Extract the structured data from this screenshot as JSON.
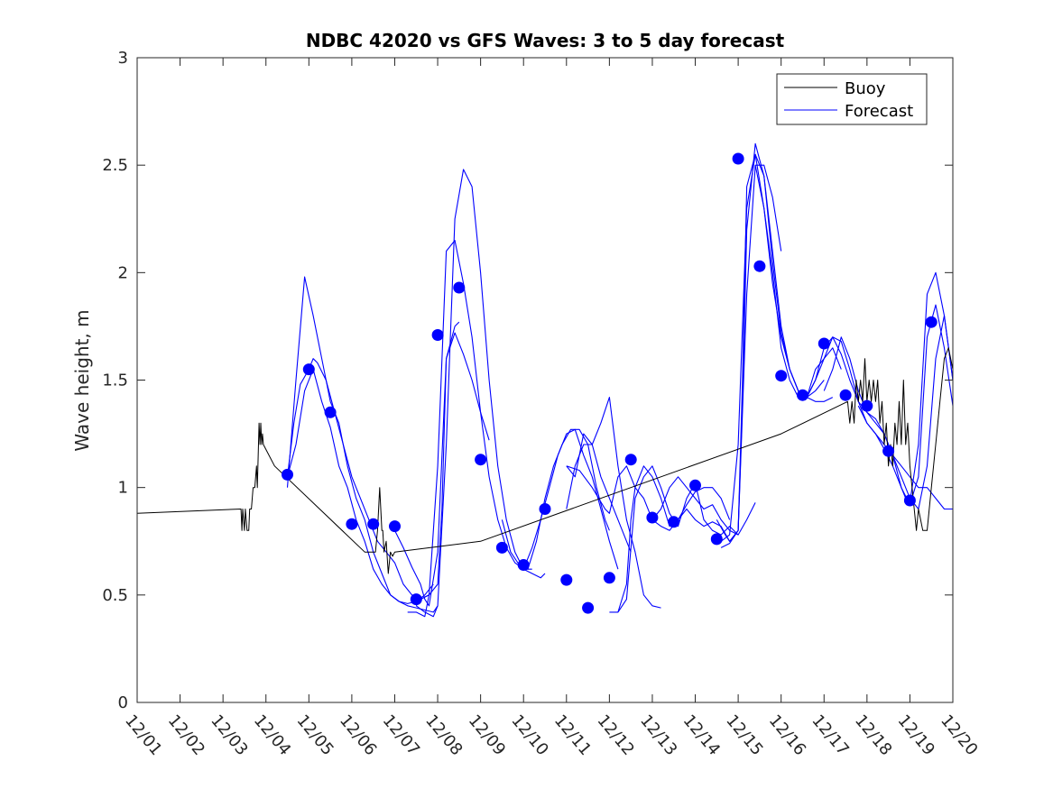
{
  "chart_data": {
    "type": "line",
    "title": "NDBC 42020 vs GFS Waves: 3 to 5 day forecast",
    "xlabel": "",
    "ylabel": "Wave height, m",
    "xlim": [
      0,
      19
    ],
    "ylim": [
      0,
      3
    ],
    "x_tick_values": [
      0,
      1,
      2,
      3,
      4,
      5,
      6,
      7,
      8,
      9,
      10,
      11,
      12,
      13,
      14,
      15,
      16,
      17,
      18,
      19
    ],
    "x_tick_labels": [
      "12/01",
      "12/02",
      "12/03",
      "12/04",
      "12/05",
      "12/06",
      "12/07",
      "12/08",
      "12/09",
      "12/10",
      "12/11",
      "12/12",
      "12/13",
      "12/14",
      "12/15",
      "12/16",
      "12/17",
      "12/18",
      "12/19",
      "12/20"
    ],
    "y_tick_values": [
      0,
      0.5,
      1,
      1.5,
      2,
      2.5,
      3
    ],
    "y_tick_labels": [
      "0",
      "0.5",
      "1",
      "1.5",
      "2",
      "2.5",
      "3"
    ],
    "grid": false,
    "legend": {
      "position": "top-right",
      "entries": [
        "Buoy",
        "Forecast"
      ]
    },
    "colors": {
      "buoy": "#000000",
      "forecast": "#0000ff",
      "axes": "#262626"
    },
    "buoy": {
      "name": "Buoy",
      "x": [
        0,
        2.42,
        2.44,
        2.46,
        2.5,
        2.52,
        2.56,
        2.6,
        2.62,
        2.66,
        2.7,
        2.74,
        2.78,
        2.8,
        2.84,
        2.86,
        2.88,
        2.9,
        2.92,
        2.94,
        3.2,
        5.3,
        5.55,
        5.6,
        5.65,
        5.7,
        5.72,
        5.75,
        5.8,
        5.85,
        5.9,
        5.95,
        6.0,
        8.0,
        15.0,
        16.55,
        16.6,
        16.65,
        16.7,
        16.75,
        16.8,
        16.85,
        16.9,
        16.95,
        17.0,
        17.05,
        17.1,
        17.15,
        17.2,
        17.25,
        17.3,
        17.35,
        17.4,
        17.45,
        17.5,
        17.55,
        17.6,
        17.65,
        17.7,
        17.75,
        17.8,
        17.85,
        17.9,
        17.95,
        18.0,
        18.05,
        18.1,
        18.15,
        18.2,
        18.3,
        18.4,
        18.5,
        18.6,
        18.7,
        18.8,
        18.9,
        19.0
      ],
      "y": [
        0.88,
        0.9,
        0.8,
        0.9,
        0.8,
        0.9,
        0.8,
        0.8,
        0.9,
        0.9,
        1.0,
        1.0,
        1.1,
        1.0,
        1.3,
        1.2,
        1.3,
        1.2,
        1.25,
        1.2,
        1.1,
        0.7,
        0.7,
        0.8,
        1.0,
        0.8,
        0.8,
        0.7,
        0.75,
        0.6,
        0.7,
        0.68,
        0.7,
        0.75,
        1.25,
        1.4,
        1.3,
        1.4,
        1.3,
        1.5,
        1.4,
        1.5,
        1.4,
        1.6,
        1.4,
        1.5,
        1.4,
        1.5,
        1.4,
        1.5,
        1.3,
        1.4,
        1.2,
        1.3,
        1.1,
        1.2,
        1.1,
        1.3,
        1.2,
        1.4,
        1.2,
        1.5,
        1.2,
        1.3,
        1.1,
        1.0,
        0.9,
        0.8,
        0.9,
        0.8,
        0.8,
        1.0,
        1.2,
        1.4,
        1.6,
        1.65,
        1.55
      ]
    },
    "forecast_series": [
      {
        "name": "Forecast run 1",
        "x": [
          3.5,
          3.7,
          3.9,
          4.1,
          4.3,
          4.5,
          4.7,
          4.9,
          5.1,
          5.3,
          5.5,
          5.7,
          5.9,
          6.1,
          6.3,
          6.5,
          6.7,
          6.9,
          7.0
        ],
        "y": [
          1.0,
          1.5,
          1.98,
          1.8,
          1.6,
          1.4,
          1.3,
          1.1,
          0.95,
          0.85,
          0.7,
          0.6,
          0.5,
          0.47,
          0.45,
          0.44,
          0.43,
          0.42,
          0.45
        ]
      },
      {
        "name": "Forecast run 2",
        "x": [
          3.5,
          3.65,
          3.8,
          4.0,
          4.1,
          4.2,
          4.4,
          4.6,
          4.8,
          5.0,
          5.2,
          5.4,
          5.6,
          5.8,
          6.0,
          6.2,
          6.4,
          6.6,
          6.8
        ],
        "y": [
          1.05,
          1.3,
          1.48,
          1.55,
          1.6,
          1.58,
          1.5,
          1.35,
          1.2,
          1.05,
          0.95,
          0.85,
          0.75,
          0.7,
          0.65,
          0.55,
          0.5,
          0.48,
          0.5
        ]
      },
      {
        "name": "Forecast run 3",
        "x": [
          3.5,
          3.7,
          3.9,
          4.1,
          4.3,
          4.5,
          4.7,
          4.9,
          5.1,
          5.3,
          5.5,
          5.7,
          5.9,
          6.1,
          6.3,
          6.5,
          6.7,
          6.9
        ],
        "y": [
          1.05,
          1.2,
          1.45,
          1.55,
          1.4,
          1.28,
          1.1,
          1.0,
          0.85,
          0.75,
          0.62,
          0.55,
          0.5,
          0.47,
          0.46,
          0.47,
          0.5,
          0.55
        ]
      },
      {
        "name": "Forecast run 4",
        "x": [
          6.5,
          6.7,
          6.9,
          7.0,
          7.2,
          7.4,
          7.6,
          7.8,
          8.0,
          8.2,
          8.4,
          8.6,
          8.8,
          9.0,
          9.2,
          9.4,
          9.5
        ],
        "y": [
          0.45,
          0.42,
          0.4,
          0.45,
          1.2,
          2.25,
          2.48,
          2.4,
          2.0,
          1.5,
          1.1,
          0.85,
          0.7,
          0.62,
          0.6,
          0.58,
          0.6
        ]
      },
      {
        "name": "Forecast run 5",
        "x": [
          6.3,
          6.5,
          6.7,
          6.8,
          7.0,
          7.2,
          7.4,
          7.6,
          7.8,
          8.0,
          8.2,
          8.4,
          8.6,
          8.8,
          9.0,
          9.2
        ],
        "y": [
          0.42,
          0.42,
          0.4,
          0.5,
          1.1,
          2.1,
          2.15,
          1.95,
          1.7,
          1.35,
          1.05,
          0.85,
          0.72,
          0.65,
          0.62,
          0.62
        ]
      },
      {
        "name": "Forecast run 6",
        "x": [
          6.5,
          6.6,
          6.8,
          7.0,
          7.1,
          7.2,
          7.4,
          7.6,
          7.8,
          8.0,
          8.2
        ],
        "y": [
          0.45,
          0.48,
          0.5,
          0.55,
          0.9,
          1.6,
          1.72,
          1.62,
          1.5,
          1.35,
          1.22
        ]
      },
      {
        "name": "Forecast run 7",
        "x": [
          5.9,
          6.0,
          6.2,
          6.4,
          6.6,
          6.7,
          6.8,
          7.0,
          7.2,
          7.4,
          7.5
        ],
        "y": [
          0.82,
          0.8,
          0.72,
          0.63,
          0.55,
          0.48,
          0.45,
          0.7,
          1.6,
          1.75,
          1.77
        ]
      },
      {
        "name": "Forecast run 8",
        "x": [
          8.5,
          8.7,
          8.9,
          9.1,
          9.3,
          9.5,
          9.7,
          9.9,
          10.1,
          10.3,
          10.5,
          10.7,
          10.9,
          11.0
        ],
        "y": [
          0.85,
          0.7,
          0.64,
          0.62,
          0.75,
          0.95,
          1.1,
          1.2,
          1.27,
          1.27,
          1.2,
          1.0,
          0.85,
          0.8
        ]
      },
      {
        "name": "Forecast run 9",
        "x": [
          9.0,
          9.2,
          9.4,
          9.6,
          9.8,
          10.0,
          10.2,
          10.4,
          10.6,
          10.8,
          11.0,
          11.2
        ],
        "y": [
          0.62,
          0.72,
          0.85,
          1.0,
          1.15,
          1.25,
          1.27,
          1.15,
          1.05,
          0.9,
          0.75,
          0.62
        ]
      },
      {
        "name": "Forecast run 10",
        "x": [
          10.0,
          10.2,
          10.4,
          10.6,
          10.8,
          11.0,
          11.2,
          11.4,
          11.5
        ],
        "y": [
          0.9,
          1.1,
          1.2,
          1.2,
          1.05,
          0.95,
          0.85,
          0.75,
          0.7
        ]
      },
      {
        "name": "Forecast run 11",
        "x": [
          10.0,
          10.2,
          10.4,
          10.6,
          10.8,
          11.0,
          11.2,
          11.4,
          11.6,
          11.8,
          12.0,
          12.2
        ],
        "y": [
          1.1,
          1.05,
          1.25,
          1.2,
          1.3,
          1.42,
          1.1,
          0.85,
          0.7,
          0.5,
          0.45,
          0.44
        ]
      },
      {
        "name": "Forecast run 12",
        "x": [
          10.0,
          10.3,
          10.6,
          10.9,
          11.0,
          11.2,
          11.4,
          11.6,
          11.8,
          12.0,
          12.2,
          12.4,
          12.6,
          12.8,
          13.0,
          13.2,
          13.4,
          13.6,
          13.8,
          14.0
        ],
        "y": [
          1.1,
          1.08,
          1.0,
          0.9,
          0.88,
          1.05,
          1.1,
          1.0,
          0.95,
          0.85,
          0.9,
          1.0,
          1.05,
          1.0,
          0.95,
          0.9,
          0.92,
          0.85,
          0.8,
          0.78
        ]
      },
      {
        "name": "Forecast run 13",
        "x": [
          11.0,
          11.2,
          11.4,
          11.5,
          11.6,
          11.8,
          12.0,
          12.2,
          12.4,
          12.6,
          12.8,
          13.0,
          13.2,
          13.4,
          13.6,
          13.8
        ],
        "y": [
          0.42,
          0.42,
          0.55,
          0.85,
          1.0,
          1.1,
          1.05,
          0.95,
          0.82,
          0.85,
          0.92,
          0.98,
          1.0,
          1.0,
          0.95,
          0.85
        ]
      },
      {
        "name": "Forecast run 14",
        "x": [
          11.2,
          11.4,
          11.6,
          11.8,
          12.0,
          12.2,
          12.4,
          12.6,
          12.8,
          13.0,
          13.2,
          13.4,
          13.6,
          13.8,
          14.0,
          14.2,
          14.4
        ],
        "y": [
          0.42,
          0.48,
          0.95,
          1.05,
          1.1,
          1.0,
          0.88,
          0.82,
          0.95,
          1.02,
          0.85,
          0.8,
          0.78,
          0.82,
          0.78,
          0.85,
          0.93
        ]
      },
      {
        "name": "Forecast run 15",
        "x": [
          12.0,
          12.2,
          12.4,
          12.6,
          12.8,
          13.0,
          13.2,
          13.4,
          13.6,
          13.8,
          14.0,
          14.2,
          14.4,
          14.6,
          14.8,
          15.0
        ],
        "y": [
          0.85,
          0.82,
          0.8,
          0.85,
          0.9,
          0.85,
          0.82,
          0.84,
          0.82,
          0.75,
          0.8,
          1.9,
          2.5,
          2.5,
          2.35,
          2.1
        ]
      },
      {
        "name": "Forecast run 16",
        "x": [
          13.5,
          13.7,
          13.8,
          14.0,
          14.1,
          14.2,
          14.4,
          14.6,
          14.8,
          15.0,
          15.2,
          15.4,
          15.6,
          15.8,
          16.0,
          16.2
        ],
        "y": [
          0.85,
          0.78,
          0.75,
          0.8,
          1.5,
          2.4,
          2.55,
          2.45,
          2.1,
          1.75,
          1.55,
          1.45,
          1.42,
          1.4,
          1.4,
          1.42
        ]
      },
      {
        "name": "Forecast run 17",
        "x": [
          13.6,
          13.8,
          14.0,
          14.1,
          14.2,
          14.4,
          14.6,
          14.8,
          15.0,
          15.2,
          15.4,
          15.6,
          15.8,
          16.0
        ],
        "y": [
          0.72,
          0.74,
          0.8,
          1.4,
          2.2,
          2.6,
          2.45,
          2.05,
          1.72,
          1.55,
          1.45,
          1.42,
          1.45,
          1.5
        ]
      },
      {
        "name": "Forecast run 18",
        "x": [
          13.6,
          13.8,
          14.0,
          14.2,
          14.4,
          14.6,
          14.8,
          15.0,
          15.2,
          15.4,
          15.6,
          15.8,
          16.0,
          16.2,
          16.4
        ],
        "y": [
          0.75,
          0.78,
          1.2,
          2.3,
          2.55,
          2.3,
          2.0,
          1.65,
          1.5,
          1.42,
          1.42,
          1.5,
          1.6,
          1.65,
          1.55
        ]
      },
      {
        "name": "Forecast run 19",
        "x": [
          14.4,
          14.6,
          14.8,
          15.0,
          15.2,
          15.4,
          15.6,
          15.8,
          16.0,
          16.2,
          16.4,
          16.6,
          16.8,
          17.0,
          17.2,
          17.4,
          17.6,
          17.8,
          18.0,
          18.2,
          18.4,
          18.6,
          18.8,
          19.0
        ],
        "y": [
          2.5,
          2.3,
          1.95,
          1.7,
          1.55,
          1.45,
          1.42,
          1.5,
          1.65,
          1.7,
          1.62,
          1.5,
          1.4,
          1.3,
          1.25,
          1.2,
          1.15,
          1.1,
          1.05,
          1.0,
          1.0,
          0.95,
          0.9,
          0.9
        ]
      },
      {
        "name": "Forecast run 20",
        "x": [
          15.6,
          15.8,
          16.0,
          16.2,
          16.4,
          16.6,
          16.8,
          17.0,
          17.2,
          17.4,
          17.6,
          17.8,
          18.0,
          18.2,
          18.4,
          18.6,
          18.8,
          19.0
        ],
        "y": [
          1.42,
          1.55,
          1.6,
          1.7,
          1.68,
          1.55,
          1.4,
          1.35,
          1.32,
          1.25,
          1.15,
          1.05,
          0.95,
          0.9,
          1.1,
          1.6,
          1.8,
          1.5
        ]
      },
      {
        "name": "Forecast run 21",
        "x": [
          16.0,
          16.2,
          16.4,
          16.6,
          16.8,
          17.0,
          17.2,
          17.4,
          17.6,
          17.8,
          17.9,
          18.0,
          18.2,
          18.4,
          18.6,
          18.8,
          19.0
        ],
        "y": [
          1.45,
          1.55,
          1.7,
          1.6,
          1.45,
          1.35,
          1.3,
          1.25,
          1.15,
          1.0,
          0.95,
          0.93,
          1.2,
          1.9,
          2.0,
          1.8,
          1.5
        ]
      },
      {
        "name": "Forecast run 22",
        "x": [
          16.8,
          17.0,
          17.2,
          17.4,
          17.6,
          17.8,
          18.0,
          18.2,
          18.4,
          18.6,
          18.8,
          19.0
        ],
        "y": [
          1.38,
          1.3,
          1.25,
          1.18,
          1.1,
          1.0,
          0.92,
          1.05,
          1.7,
          1.85,
          1.65,
          1.38
        ]
      }
    ],
    "forecast_markers": {
      "x": [
        3.5,
        4.0,
        4.5,
        5.0,
        5.5,
        6.0,
        6.5,
        7.0,
        7.5,
        8.0,
        8.5,
        9.0,
        9.5,
        10.0,
        10.5,
        11.0,
        11.5,
        12.0,
        12.5,
        13.0,
        13.5,
        14.0,
        14.5,
        15.0,
        15.5,
        16.0,
        16.5,
        17.0,
        17.5,
        18.0,
        18.5
      ],
      "y": [
        1.06,
        1.55,
        1.35,
        0.83,
        0.83,
        0.82,
        0.48,
        1.71,
        1.93,
        1.13,
        0.72,
        0.64,
        0.9,
        0.57,
        0.44,
        0.58,
        1.13,
        0.86,
        0.84,
        1.01,
        0.76,
        2.53,
        2.03,
        1.52,
        1.43,
        1.67,
        1.43,
        1.38,
        1.17,
        0.94,
        1.77
      ]
    }
  }
}
